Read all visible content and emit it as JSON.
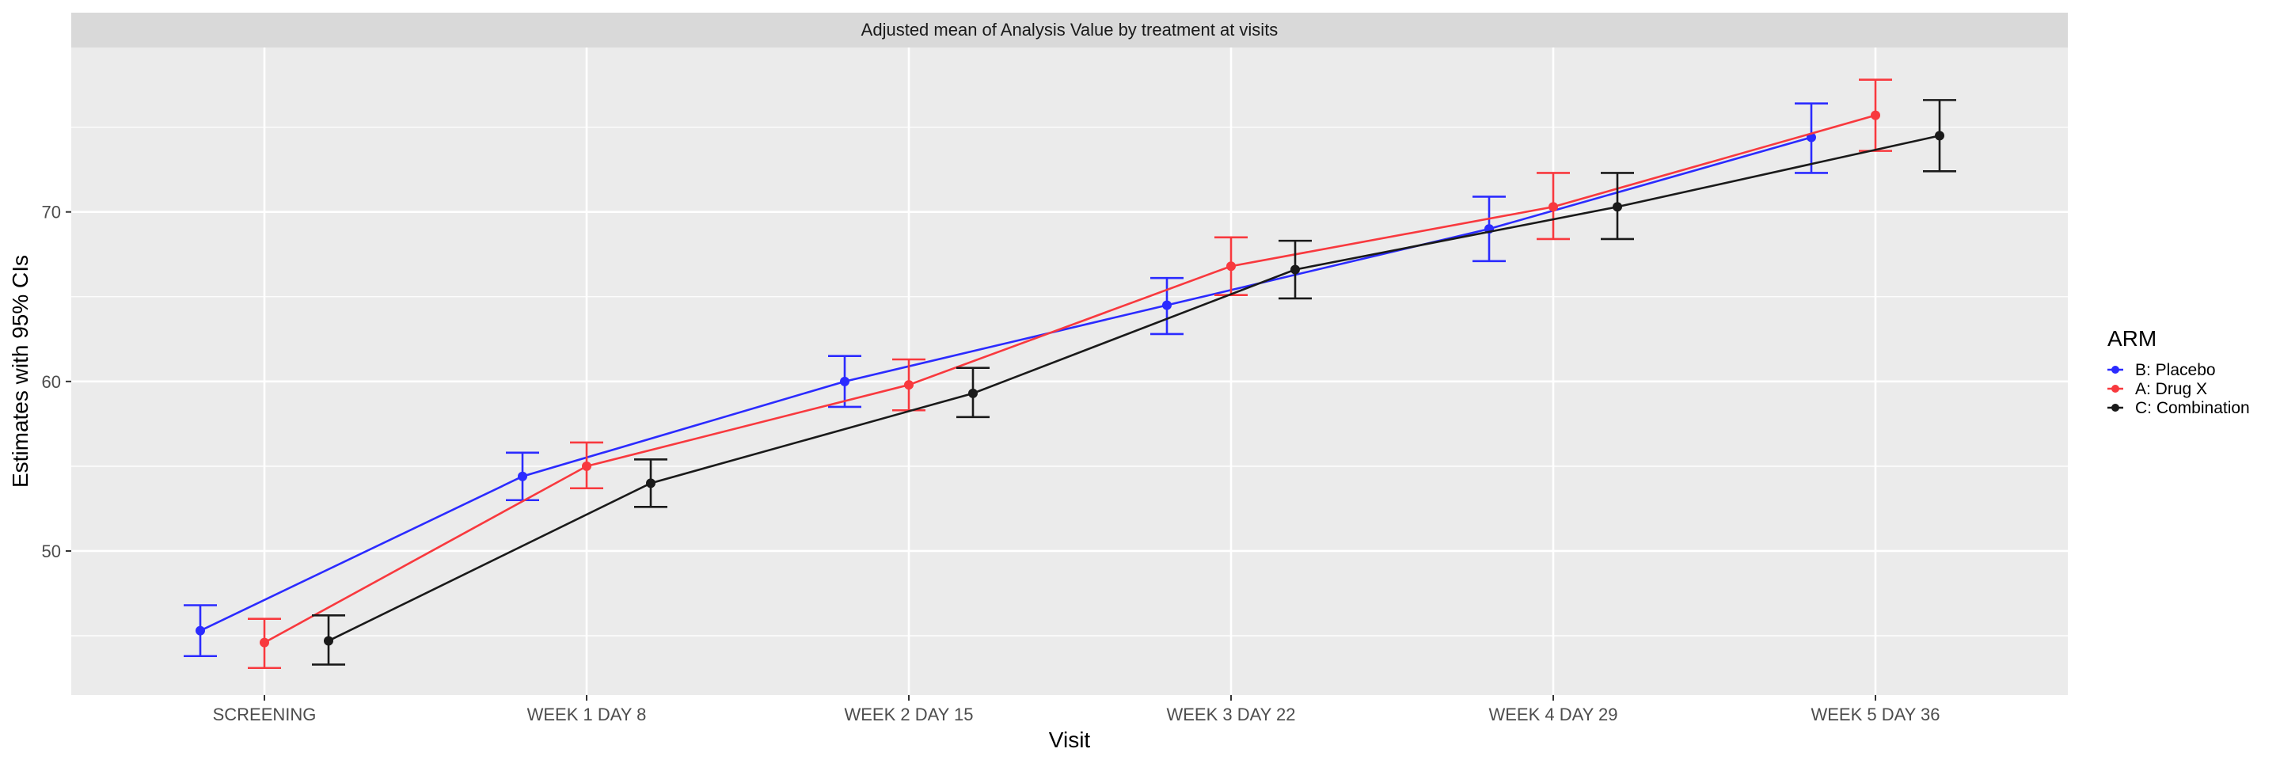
{
  "chart_data": {
    "type": "line",
    "title": "Adjusted mean of Analysis Value by treatment at visits",
    "xlabel": "Visit",
    "ylabel": "Estimates with 95% CIs",
    "categories": [
      "SCREENING",
      "WEEK 1 DAY 8",
      "WEEK 2 DAY 15",
      "WEEK 3 DAY 22",
      "WEEK 4 DAY 29",
      "WEEK 5 DAY 36"
    ],
    "ylim": [
      41.5,
      79.7
    ],
    "yticks": [
      50,
      60,
      70
    ],
    "grid": true,
    "legend_title": "ARM",
    "legend_position": "right",
    "error_bars": "95% CI",
    "series": [
      {
        "name": "B: Placebo",
        "color": "#2b2bff",
        "values": [
          45.3,
          54.4,
          60.0,
          64.5,
          69.0,
          74.4
        ],
        "lower": [
          43.8,
          53.0,
          58.5,
          62.8,
          67.1,
          72.3
        ],
        "upper": [
          46.8,
          55.8,
          61.5,
          66.1,
          70.9,
          76.4
        ]
      },
      {
        "name": "A: Drug X",
        "color": "#f8393e",
        "values": [
          44.6,
          55.0,
          59.8,
          66.8,
          70.3,
          75.7
        ],
        "lower": [
          43.1,
          53.7,
          58.3,
          65.1,
          68.4,
          73.6
        ],
        "upper": [
          46.0,
          56.4,
          61.3,
          68.5,
          72.3,
          77.8
        ]
      },
      {
        "name": "C: Combination",
        "color": "#1a1a1a",
        "values": [
          44.7,
          54.0,
          59.3,
          66.6,
          70.3,
          74.5
        ],
        "lower": [
          43.3,
          52.6,
          57.9,
          64.9,
          68.4,
          72.4
        ],
        "upper": [
          46.2,
          55.4,
          60.8,
          68.3,
          72.3,
          76.6
        ]
      }
    ]
  }
}
